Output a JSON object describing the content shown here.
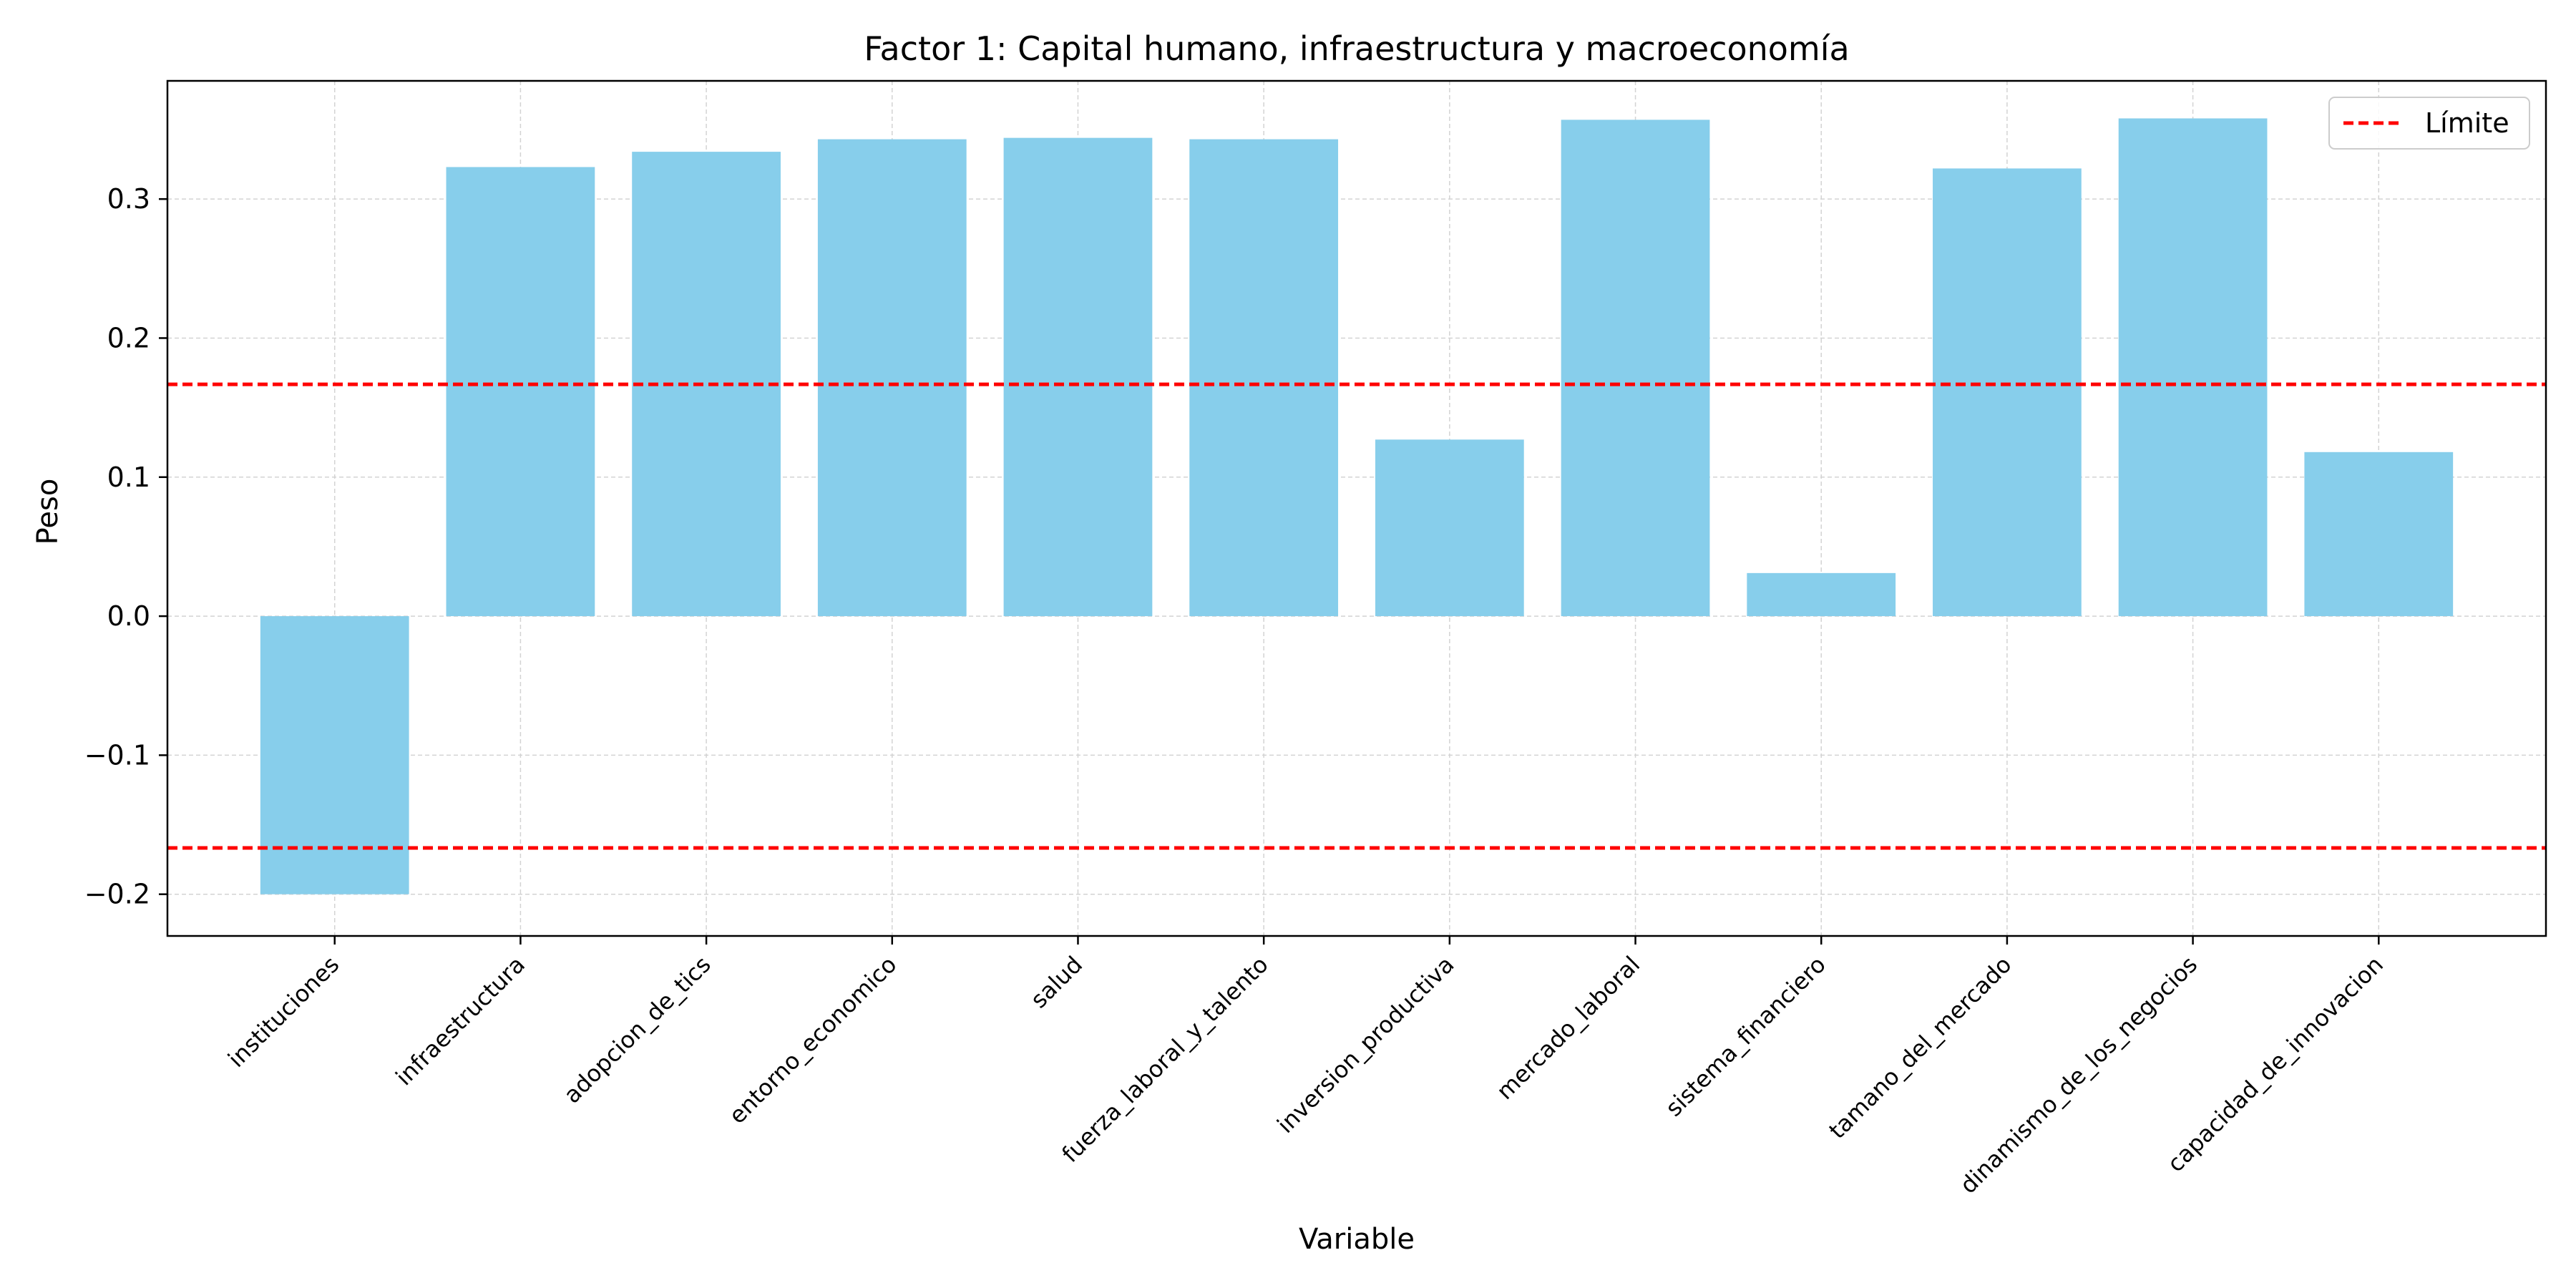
{
  "chart_data": {
    "type": "bar",
    "title": "Factor 1: Capital humano, infraestructura y macroeconomía",
    "xlabel": "Variable",
    "ylabel": "Peso",
    "categories": [
      "instituciones",
      "infraestructura",
      "adopcion_de_tics",
      "entorno_economico",
      "salud",
      "fuerza_laboral_y_talento",
      "inversion_productiva",
      "mercado_laboral",
      "sistema_financiero",
      "tamano_del_mercado",
      "dinamismo_de_los_negocios",
      "capacidad_de_innovacion"
    ],
    "values": [
      -0.2,
      0.323,
      0.334,
      0.343,
      0.344,
      0.343,
      0.127,
      0.357,
      0.031,
      0.322,
      0.358,
      0.118
    ],
    "ylim": [
      -0.23,
      0.385
    ],
    "yticks": [
      -0.2,
      -0.1,
      0.0,
      0.1,
      0.2,
      0.3
    ],
    "ytick_labels": [
      "−0.2",
      "−0.1",
      "0.0",
      "0.1",
      "0.2",
      "0.3"
    ],
    "bar_color": "#87CEEB",
    "reference_lines": [
      {
        "value": 0.1667,
        "color": "#FF0000",
        "style": "dashed"
      },
      {
        "value": -0.1667,
        "color": "#FF0000",
        "style": "dashed"
      }
    ],
    "legend": {
      "position": "top-right",
      "entries": [
        {
          "label": "Límite",
          "color": "#FF0000",
          "style": "dashed"
        }
      ]
    },
    "grid": true
  }
}
